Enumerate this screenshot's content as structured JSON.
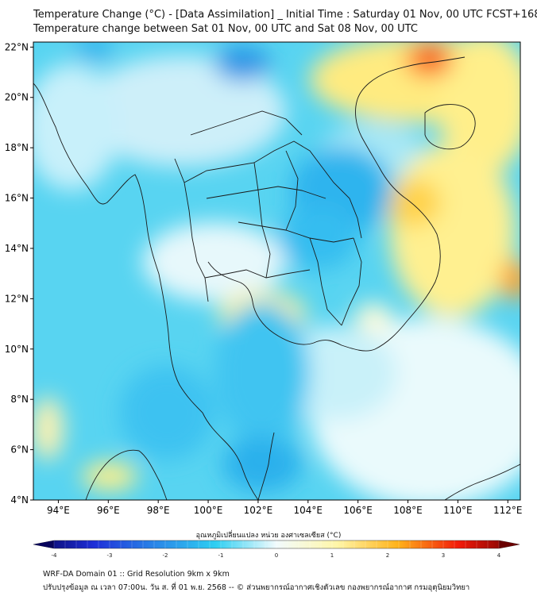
{
  "header": {
    "title_line1": "Temperature Change (°C) - [Data Assimilation] _ Initial Time : Saturday 01 Nov, 00 UTC FCST+168",
    "title_line2": "Temperature change between Sat 01 Nov, 00 UTC and Sat 08 Nov, 00 UTC"
  },
  "map": {
    "lat_labels": [
      "22°N",
      "20°N",
      "18°N",
      "16°N",
      "14°N",
      "12°N",
      "10°N",
      "8°N",
      "6°N",
      "4°N"
    ],
    "lon_labels": [
      "94°E",
      "96°E",
      "98°E",
      "100°E",
      "102°E",
      "104°E",
      "106°E",
      "108°E",
      "110°E",
      "112°E"
    ],
    "lat_values": [
      22,
      20,
      18,
      16,
      14,
      12,
      10,
      8,
      6,
      4
    ],
    "lon_values": [
      94,
      96,
      98,
      100,
      102,
      104,
      106,
      108,
      110,
      112
    ],
    "extent": {
      "lon_min": 93,
      "lon_max": 112.5,
      "lat_min": 4,
      "lat_max": 22.2
    }
  },
  "colorbar": {
    "label": "อุณหภูมิเปลี่ยนแปลง หน่วย องศาเซลเซียส (°C)",
    "ticks": [
      "-4",
      "-3",
      "-2",
      "-1",
      "0",
      "1",
      "2",
      "3",
      "4"
    ],
    "tick_values": [
      -4,
      -3,
      -2,
      -1,
      0,
      1,
      2,
      3,
      4
    ],
    "min": -4,
    "max": 4,
    "colors": [
      "#08045c",
      "#1e2fd8",
      "#2a86e8",
      "#2fcff2",
      "#f2fbfd",
      "#fff6a8",
      "#ffb21a",
      "#f21a0a",
      "#6a0000"
    ]
  },
  "footer": {
    "line1": "WRF-DA Domain 01 :: Grid Resolution 9km x 9km",
    "line2": "ปรับปรุงข้อมูล ณ เวลา 07:00น. วัน ส. ที่ 01 พ.ย. 2568 -- © ส่วนพยากรณ์อากาศเชิงตัวเลข กองพยากรณ์อากาศ กรมอุตุนิยมวิทยา"
  }
}
